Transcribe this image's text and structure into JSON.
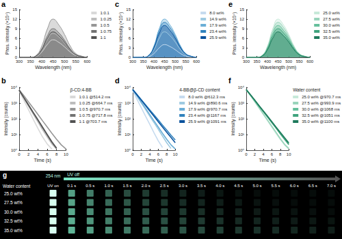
{
  "chart_data": [
    {
      "type": "line",
      "title": "a",
      "x": [
        300,
        325,
        350,
        375,
        400,
        425,
        450,
        475,
        500,
        525,
        550,
        575,
        600
      ],
      "series": [
        {
          "name": "1:0.1",
          "color": "#d9d9d9",
          "values": [
            0,
            0,
            0,
            0.3,
            1.7,
            4.1,
            5.5,
            4.7,
            3.3,
            1.7,
            0.6,
            0.2,
            0
          ]
        },
        {
          "name": "1:0.25",
          "color": "#bdbdbd",
          "values": [
            0,
            0,
            0,
            0.4,
            2.3,
            5.6,
            7.5,
            6.4,
            4.5,
            2.3,
            0.8,
            0.2,
            0
          ]
        },
        {
          "name": "1:0.5",
          "color": "#969696",
          "values": [
            0,
            0,
            0,
            0.6,
            3.6,
            9.0,
            12.0,
            10.2,
            7.2,
            3.6,
            1.2,
            0.4,
            0
          ]
        },
        {
          "name": "1:0.75",
          "color": "#737373",
          "values": [
            0,
            0,
            0,
            0.5,
            2.7,
            6.8,
            9.0,
            7.7,
            5.4,
            2.7,
            0.9,
            0.3,
            0
          ]
        },
        {
          "name": "1:1",
          "color": "#525252",
          "values": [
            0,
            0,
            0,
            0.4,
            2.4,
            6.0,
            8.0,
            6.8,
            4.8,
            2.4,
            0.8,
            0.2,
            0
          ]
        }
      ],
      "xlim": [
        300,
        600
      ],
      "xticks": [
        300,
        350,
        400,
        450,
        500,
        550,
        600
      ],
      "ylim": [
        0,
        15
      ],
      "yticks": [
        0,
        3,
        6,
        9,
        12,
        15
      ],
      "xlabel": "Wavelength (nm)",
      "ylabel": "Phos. intensity (×10⁴)",
      "legend": "right",
      "grid": false
    },
    {
      "type": "line",
      "title": "b",
      "subtitle": "β-CD:4-BB",
      "x": [
        0,
        1,
        2,
        3,
        4,
        5,
        6,
        7,
        8,
        9,
        10
      ],
      "series": [
        {
          "name": "1:0.1 @514.2 ms",
          "color": "#d9d9d9",
          "values": [
            6000,
            1500,
            380,
            95,
            25,
            7,
            2.5,
            1.2,
            null,
            null,
            null
          ]
        },
        {
          "name": "1:0.25 @664.7 ms",
          "color": "#bdbdbd",
          "values": [
            6500,
            2100,
            650,
            200,
            65,
            20,
            7,
            2.5,
            1.2,
            null,
            null
          ]
        },
        {
          "name": "1:0.5 @970.7 ms",
          "color": "#969696",
          "values": [
            7000,
            3000,
            1200,
            480,
            190,
            75,
            30,
            12,
            5,
            2.2,
            1.2
          ]
        },
        {
          "name": "1:0.75 @717.8 ms",
          "color": "#737373",
          "values": [
            6800,
            2300,
            780,
            260,
            90,
            30,
            10,
            3.5,
            1.4,
            null,
            null
          ]
        },
        {
          "name": "1:1 @703.7 ms",
          "color": "#525252",
          "values": [
            6700,
            2200,
            740,
            250,
            85,
            28,
            9.5,
            3.2,
            1.3,
            null,
            null
          ]
        }
      ],
      "xlim": [
        0,
        10
      ],
      "xticks": [
        0,
        2,
        4,
        6,
        8,
        10
      ],
      "ylim": [
        1,
        10000
      ],
      "yticks": [
        {
          "value": 1,
          "label": "10⁰"
        },
        {
          "value": 10,
          "label": "10¹"
        },
        {
          "value": 100,
          "label": "10²"
        },
        {
          "value": 1000,
          "label": "10³"
        },
        {
          "value": 10000,
          "label": "10⁴"
        }
      ],
      "log": "y",
      "xlabel": "Time (s)",
      "ylabel": "Intensity (counts)",
      "legend": "right",
      "grid": false
    },
    {
      "type": "line",
      "title": "c",
      "x": [
        300,
        325,
        350,
        375,
        400,
        425,
        450,
        475,
        500,
        525,
        550,
        575,
        600
      ],
      "series": [
        {
          "name": "8.0 wt%",
          "color": "#c6dbef",
          "values": [
            0,
            0,
            0,
            0.2,
            1.2,
            3.0,
            4.0,
            3.4,
            2.4,
            1.2,
            0.4,
            0.1,
            0
          ]
        },
        {
          "name": "14.9 wt%",
          "color": "#9ecae1",
          "values": [
            0,
            0,
            0,
            0.4,
            2.4,
            6.0,
            8.0,
            6.8,
            4.8,
            2.4,
            0.8,
            0.2,
            0
          ]
        },
        {
          "name": "17.9 wt%",
          "color": "#6baed6",
          "values": [
            0,
            0,
            0,
            0.6,
            3.6,
            9.0,
            12.0,
            10.2,
            7.2,
            3.6,
            1.2,
            0.4,
            0
          ]
        },
        {
          "name": "23.4 wt%",
          "color": "#3182bd",
          "values": [
            0,
            0,
            0,
            0.6,
            3.3,
            8.3,
            11.0,
            9.4,
            6.6,
            3.3,
            1.1,
            0.3,
            0
          ]
        },
        {
          "name": "25.9 wt%",
          "color": "#08519c",
          "values": [
            0,
            0,
            0,
            0.5,
            3.0,
            7.5,
            10.0,
            8.5,
            6.0,
            3.0,
            1.0,
            0.3,
            0
          ]
        }
      ],
      "xlim": [
        300,
        600
      ],
      "xticks": [
        300,
        350,
        400,
        450,
        500,
        550,
        600
      ],
      "ylim": [
        0,
        15
      ],
      "yticks": [
        0,
        3,
        6,
        9,
        12,
        15
      ],
      "xlabel": "Wavelength (nm)",
      "ylabel": "Phos. intensity (×10⁴)",
      "legend": "right",
      "grid": false
    },
    {
      "type": "line",
      "title": "d",
      "subtitle": "4-BB@β-CD content",
      "x": [
        0,
        1,
        2,
        3,
        4,
        5,
        6,
        7,
        8,
        9,
        10
      ],
      "series": [
        {
          "name": "8.0 wt% @612.3 ms",
          "color": "#c6dbef",
          "values": [
            6200,
            1800,
            520,
            150,
            45,
            13,
            4,
            1.5,
            null,
            null,
            null
          ]
        },
        {
          "name": "14.9 wt% @890.6 ms",
          "color": "#9ecae1",
          "values": [
            7000,
            2800,
            1050,
            400,
            150,
            58,
            22,
            8,
            3,
            1.3,
            null
          ]
        },
        {
          "name": "17.9 wt% @970.7 ms",
          "color": "#6baed6",
          "values": [
            7000,
            3000,
            1200,
            480,
            190,
            75,
            30,
            12,
            5,
            2.2,
            1.2
          ]
        },
        {
          "name": "23.4 wt% @1167 ms",
          "color": "#3182bd",
          "values": [
            7500,
            3600,
            1700,
            800,
            380,
            180,
            85,
            40,
            19,
            9,
            4.5
          ]
        },
        {
          "name": "25.9 wt% @1091 ms",
          "color": "#08519c",
          "values": [
            7300,
            3400,
            1550,
            700,
            320,
            145,
            65,
            30,
            14,
            6.5,
            3
          ]
        }
      ],
      "xlim": [
        0,
        10
      ],
      "xticks": [
        0,
        2,
        4,
        6,
        8,
        10
      ],
      "ylim": [
        1,
        10000
      ],
      "yticks": [
        {
          "value": 1,
          "label": "10⁰"
        },
        {
          "value": 10,
          "label": "10¹"
        },
        {
          "value": 100,
          "label": "10²"
        },
        {
          "value": 1000,
          "label": "10³"
        },
        {
          "value": 10000,
          "label": "10⁴"
        }
      ],
      "log": "y",
      "xlabel": "Time (s)",
      "ylabel": "Intensity (counts)",
      "legend": "right",
      "grid": false
    },
    {
      "type": "line",
      "title": "e",
      "x": [
        300,
        325,
        350,
        375,
        400,
        425,
        450,
        475,
        500,
        525,
        550,
        575,
        600
      ],
      "series": [
        {
          "name": "25.0 wt%",
          "color": "#c7e9d9",
          "values": [
            0,
            0,
            0,
            0.6,
            3.6,
            9.0,
            12.0,
            10.2,
            7.2,
            3.6,
            1.2,
            0.4,
            0
          ]
        },
        {
          "name": "27.5 wt%",
          "color": "#99d4bb",
          "values": [
            0,
            0,
            0,
            0.6,
            3.3,
            8.3,
            11.0,
            9.4,
            6.6,
            3.3,
            1.1,
            0.3,
            0
          ]
        },
        {
          "name": "30.0 wt%",
          "color": "#66bf9c",
          "values": [
            0,
            0,
            0,
            0.5,
            3.0,
            7.5,
            10.0,
            8.5,
            6.0,
            3.0,
            1.0,
            0.3,
            0
          ]
        },
        {
          "name": "32.5 wt%",
          "color": "#3fa37d",
          "values": [
            0,
            0,
            0,
            0.5,
            2.7,
            6.8,
            9.0,
            7.7,
            5.4,
            2.7,
            0.9,
            0.3,
            0
          ]
        },
        {
          "name": "35.0 wt%",
          "color": "#1f7a5c",
          "values": [
            0,
            0,
            0,
            0.4,
            2.4,
            6.0,
            8.0,
            6.8,
            4.8,
            2.4,
            0.8,
            0.2,
            0
          ]
        }
      ],
      "xlim": [
        300,
        600
      ],
      "xticks": [
        300,
        350,
        400,
        450,
        500,
        550,
        600
      ],
      "ylim": [
        0,
        15
      ],
      "yticks": [
        0,
        3,
        6,
        9,
        12,
        15
      ],
      "xlabel": "Wavelength (nm)",
      "ylabel": "Phos. intensity (×10⁴)",
      "legend": "right",
      "grid": false
    },
    {
      "type": "line",
      "title": "f",
      "subtitle": "Water content",
      "x": [
        0,
        1,
        2,
        3,
        4,
        5,
        6,
        7,
        8,
        9,
        10
      ],
      "series": [
        {
          "name": "25.0 wt% @970.7 ms",
          "color": "#c7e9d9",
          "values": [
            7000,
            3000,
            1200,
            480,
            190,
            75,
            30,
            12,
            5,
            2.2,
            1.2
          ]
        },
        {
          "name": "27.5 wt% @993.9 ms",
          "color": "#99d4bb",
          "values": [
            7100,
            3100,
            1280,
            520,
            210,
            85,
            34,
            14,
            5.5,
            2.4,
            1.3
          ]
        },
        {
          "name": "30.0 wt% @1068 ms",
          "color": "#66bf9c",
          "values": [
            7200,
            3300,
            1480,
            660,
            300,
            135,
            60,
            27,
            12,
            5.5,
            2.5
          ]
        },
        {
          "name": "32.5 wt% @1051 ms",
          "color": "#3fa37d",
          "values": [
            7200,
            3250,
            1440,
            640,
            290,
            130,
            58,
            26,
            11,
            5,
            2.3
          ]
        },
        {
          "name": "35.0 wt% @1100 ms",
          "color": "#1f7a5c",
          "values": [
            7300,
            3400,
            1560,
            710,
            325,
            148,
            67,
            30,
            14,
            6.3,
            2.9
          ]
        }
      ],
      "xlim": [
        0,
        10
      ],
      "xticks": [
        0,
        2,
        4,
        6,
        8,
        10
      ],
      "ylim": [
        1,
        10000
      ],
      "yticks": [
        {
          "value": 1,
          "label": "10⁰"
        },
        {
          "value": 10,
          "label": "10¹"
        },
        {
          "value": 100,
          "label": "10²"
        },
        {
          "value": 1000,
          "label": "10³"
        },
        {
          "value": 10000,
          "label": "10⁴"
        }
      ],
      "log": "y",
      "xlabel": "Time (s)",
      "ylabel": "Intensity (counts)",
      "legend": "right",
      "grid": false
    }
  ],
  "panel_g": {
    "title": "g",
    "excitation": "254 nm",
    "off_label": "UV off",
    "row_header": "Water content",
    "columns": [
      "UV on",
      "0.1 s",
      "0.5 s",
      "1.0 s",
      "1.5 s",
      "2.0 s",
      "2.5 s",
      "3.0 s",
      "3.5 s",
      "4.0 s",
      "4.5 s",
      "5.0 s",
      "5.5 s",
      "6.0 s",
      "6.5 s",
      "7.0 s"
    ],
    "rows": [
      "25.0 wt%",
      "27.5 wt%",
      "30.0 wt%",
      "32.5 wt%",
      "35.0 wt%"
    ]
  }
}
